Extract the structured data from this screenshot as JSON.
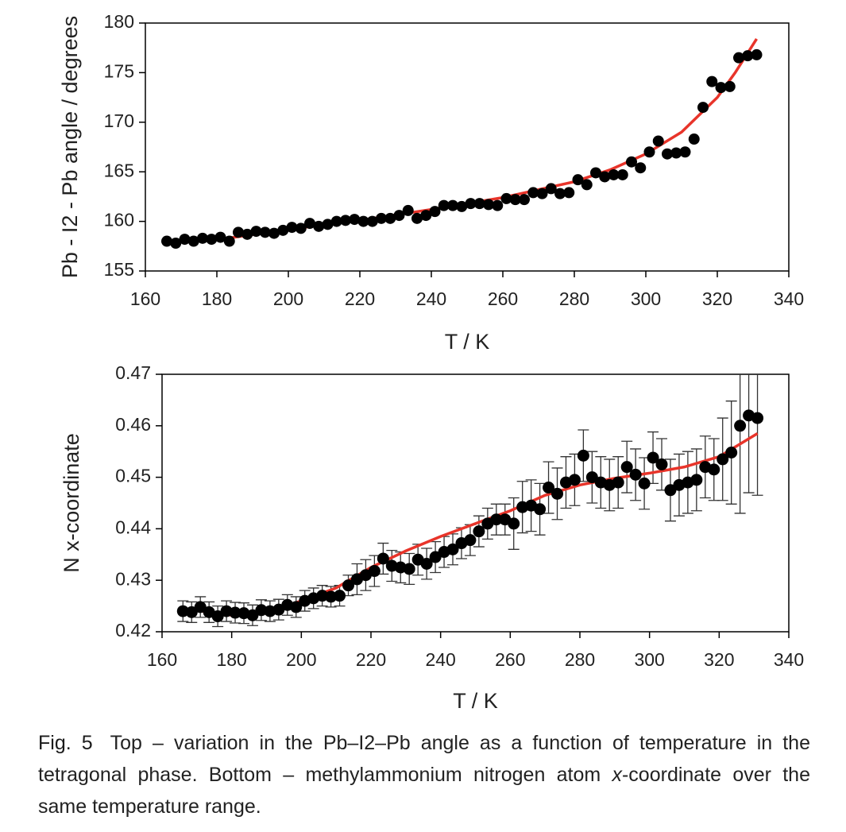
{
  "chart_data": [
    {
      "type": "scatter",
      "x_label": "T / K",
      "y_label": "Pb - I2 - Pb angle / degrees",
      "x": [
        166,
        168.5,
        171,
        173.5,
        176,
        178.5,
        181,
        183.5,
        186,
        188.5,
        191,
        193.5,
        196,
        198.5,
        201,
        203.5,
        206,
        208.5,
        211,
        213.5,
        216,
        218.5,
        221,
        223.5,
        226,
        228.5,
        231,
        233.5,
        236,
        238.5,
        241,
        243.5,
        246,
        248.5,
        251,
        253.5,
        256,
        258.5,
        261,
        263.5,
        266,
        268.5,
        271,
        273.5,
        276,
        278.5,
        281,
        283.5,
        286,
        288.5,
        291,
        293.5,
        296,
        298.5,
        301,
        303.5,
        306,
        308.5,
        311,
        313.5,
        316,
        318.5,
        321,
        323.5,
        326,
        328.5,
        331
      ],
      "series": [
        {
          "color": "#000000",
          "values": [
            158.0,
            157.8,
            158.2,
            158.0,
            158.3,
            158.2,
            158.4,
            158.0,
            158.9,
            158.7,
            159.0,
            158.9,
            158.8,
            159.1,
            159.4,
            159.3,
            159.8,
            159.5,
            159.7,
            160.0,
            160.1,
            160.2,
            160.0,
            160.0,
            160.3,
            160.3,
            160.6,
            161.1,
            160.3,
            160.6,
            161.0,
            161.6,
            161.6,
            161.5,
            161.8,
            161.8,
            161.7,
            161.6,
            162.3,
            162.2,
            162.2,
            162.9,
            162.8,
            163.3,
            162.8,
            162.9,
            164.2,
            163.7,
            164.9,
            164.5,
            164.7,
            164.7,
            166.0,
            165.4,
            167.0,
            168.1,
            166.8,
            166.9,
            167.0,
            168.3,
            171.5,
            174.1,
            173.5,
            173.6,
            176.5,
            176.7,
            176.8
          ]
        }
      ],
      "fit": {
        "color": "#e8342a",
        "x": [
          183,
          200,
          220,
          240,
          260,
          280,
          290,
          300,
          310,
          320,
          325,
          331
        ],
        "values": [
          158.3,
          159.2,
          160.1,
          161.2,
          162.4,
          164.0,
          165.2,
          166.8,
          169.0,
          172.5,
          175.0,
          178.4
        ]
      },
      "xlim": [
        160,
        340
      ],
      "xticks": [
        160,
        180,
        200,
        220,
        240,
        260,
        280,
        300,
        320,
        340
      ],
      "ylim": [
        155,
        180
      ],
      "yticks": [
        155,
        160,
        165,
        170,
        175,
        180
      ]
    },
    {
      "type": "scatter",
      "x_label": "T / K",
      "y_label": "N x-coordinate",
      "x": [
        166,
        168.5,
        171,
        173.5,
        176,
        178.5,
        181,
        183.5,
        186,
        188.5,
        191,
        193.5,
        196,
        198.5,
        201,
        203.5,
        206,
        208.5,
        211,
        213.5,
        216,
        218.5,
        221,
        223.5,
        226,
        228.5,
        231,
        233.5,
        236,
        238.5,
        241,
        243.5,
        246,
        248.5,
        251,
        253.5,
        256,
        258.5,
        261,
        263.5,
        266,
        268.5,
        271,
        273.5,
        276,
        278.5,
        281,
        283.5,
        286,
        288.5,
        291,
        293.5,
        296,
        298.5,
        301,
        303.5,
        306,
        308.5,
        311,
        313.5,
        316,
        318.5,
        321,
        323.5,
        326,
        328.5,
        331
      ],
      "series": [
        {
          "color": "#000000",
          "values": [
            0.424,
            0.4238,
            0.4248,
            0.4238,
            0.423,
            0.424,
            0.4237,
            0.4236,
            0.4232,
            0.4242,
            0.424,
            0.4243,
            0.4252,
            0.4248,
            0.426,
            0.4265,
            0.427,
            0.4268,
            0.427,
            0.429,
            0.4302,
            0.431,
            0.4318,
            0.4342,
            0.4328,
            0.4325,
            0.4322,
            0.434,
            0.4332,
            0.4345,
            0.4355,
            0.436,
            0.4372,
            0.4378,
            0.4395,
            0.441,
            0.4418,
            0.4418,
            0.441,
            0.4442,
            0.4445,
            0.4438,
            0.448,
            0.4468,
            0.449,
            0.4495,
            0.4542,
            0.45,
            0.449,
            0.4485,
            0.449,
            0.452,
            0.4505,
            0.4488,
            0.4538,
            0.4525,
            0.4475,
            0.4485,
            0.449,
            0.4495,
            0.452,
            0.4515,
            0.4535,
            0.4548,
            0.46,
            0.462,
            0.4615
          ],
          "errors": [
            0.002,
            0.002,
            0.002,
            0.002,
            0.002,
            0.002,
            0.002,
            0.002,
            0.002,
            0.002,
            0.002,
            0.002,
            0.002,
            0.002,
            0.002,
            0.002,
            0.002,
            0.002,
            0.002,
            0.002,
            0.003,
            0.003,
            0.003,
            0.003,
            0.003,
            0.003,
            0.003,
            0.003,
            0.003,
            0.003,
            0.003,
            0.003,
            0.003,
            0.003,
            0.003,
            0.003,
            0.003,
            0.003,
            0.005,
            0.005,
            0.005,
            0.005,
            0.005,
            0.005,
            0.005,
            0.005,
            0.005,
            0.005,
            0.005,
            0.005,
            0.005,
            0.005,
            0.005,
            0.005,
            0.005,
            0.005,
            0.006,
            0.006,
            0.006,
            0.006,
            0.006,
            0.006,
            0.008,
            0.01,
            0.017,
            0.015,
            0.015
          ]
        }
      ],
      "fit": {
        "color": "#e8342a",
        "x": [
          166,
          180,
          190,
          200,
          210,
          220,
          230,
          240,
          250,
          260,
          270,
          280,
          290,
          300,
          310,
          320,
          331
        ],
        "values": [
          0.4245,
          0.4232,
          0.4238,
          0.426,
          0.4285,
          0.4325,
          0.4357,
          0.4385,
          0.441,
          0.4435,
          0.4465,
          0.4485,
          0.4498,
          0.4508,
          0.452,
          0.454,
          0.4585
        ]
      },
      "xlim": [
        160,
        340
      ],
      "xticks": [
        160,
        180,
        200,
        220,
        240,
        260,
        280,
        300,
        320,
        340
      ],
      "ylim": [
        0.42,
        0.47
      ],
      "yticks": [
        0.42,
        0.43,
        0.44,
        0.45,
        0.46,
        0.47
      ]
    }
  ],
  "caption": {
    "label": "Fig. 5",
    "text": "Top – variation in the Pb–I2–Pb angle as a function of temperature in the tetragonal phase. Bottom – methylammonium nitrogen atom ",
    "italic": "x",
    "text_end": "-coordinate over the same temperature range."
  }
}
